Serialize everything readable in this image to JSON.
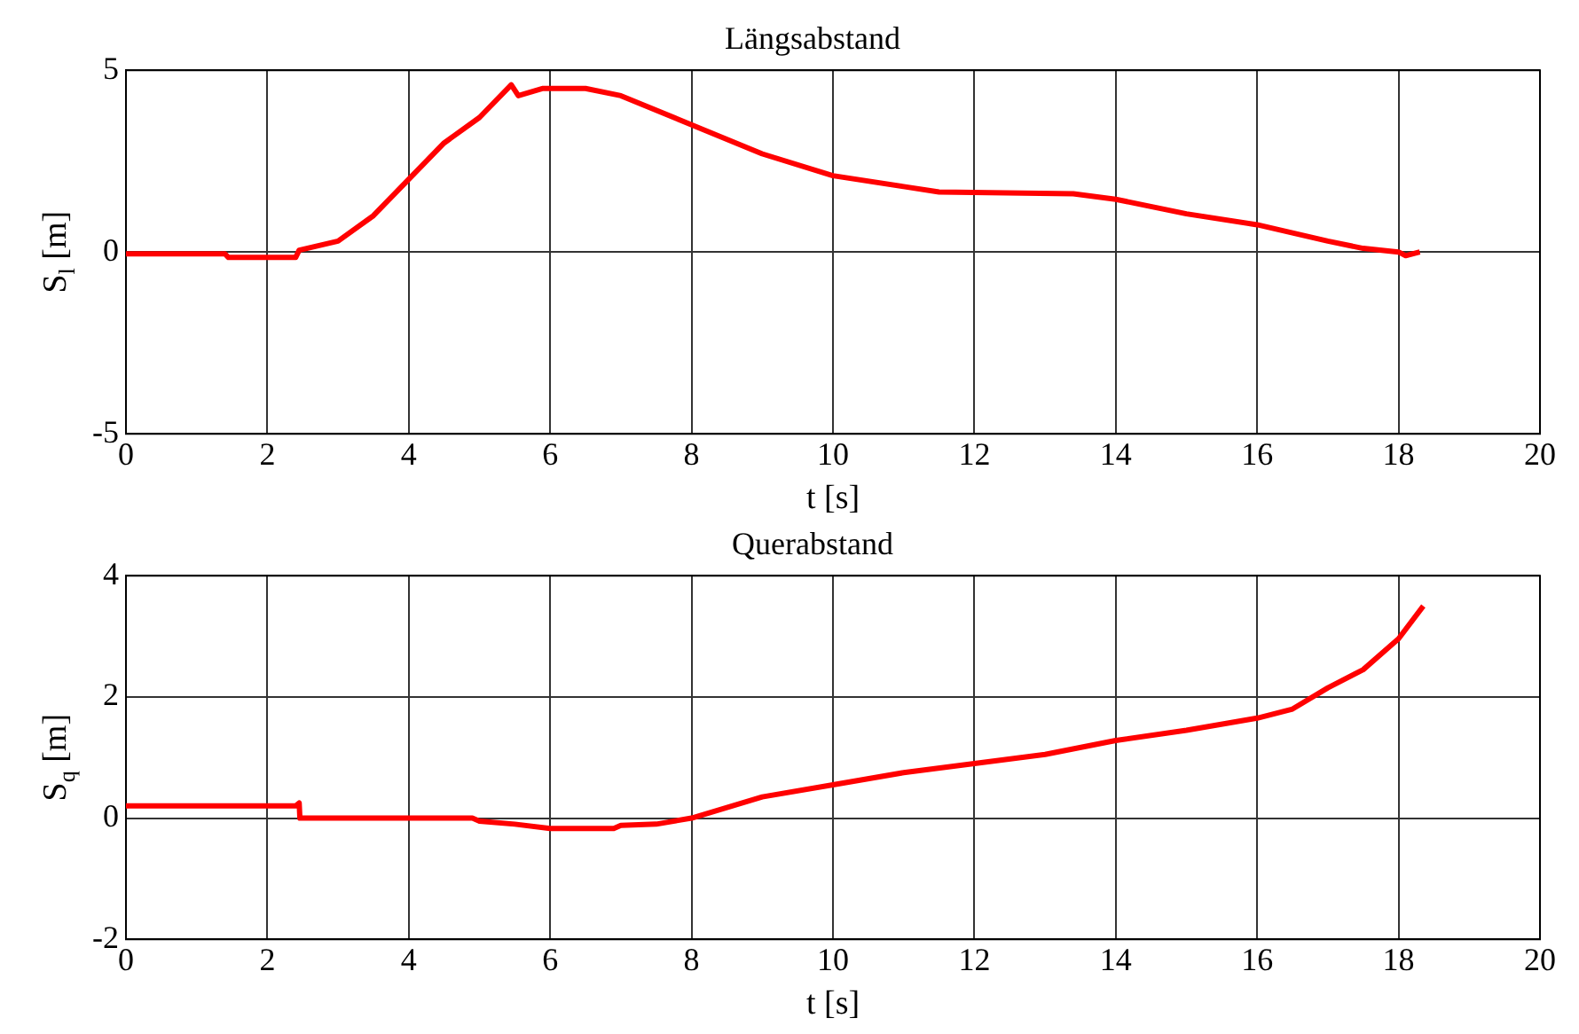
{
  "chart_data": [
    {
      "type": "line",
      "title": "Längsabstand",
      "xlabel": "t [s]",
      "ylabel": "S$_{l}$ [m]",
      "color": "#ff0000",
      "grid": true,
      "marker": "none",
      "xlim": [
        0,
        20
      ],
      "xticks": [
        0,
        2,
        4,
        6,
        8,
        10,
        12,
        14,
        16,
        18,
        20
      ],
      "ylim": [
        -5,
        5
      ],
      "yticks": [
        -5,
        0,
        5
      ],
      "x": [
        0,
        1.4,
        1.45,
        2.4,
        2.45,
        3,
        3.5,
        4,
        4.5,
        5,
        5.45,
        5.55,
        5.9,
        6.5,
        7,
        8,
        9,
        10,
        11,
        11.5,
        13.4,
        14,
        15,
        16,
        17,
        17.5,
        18,
        18.1,
        18.3
      ],
      "values": [
        -0.05,
        -0.05,
        -0.15,
        -0.15,
        0.05,
        0.3,
        1.0,
        2.0,
        3.0,
        3.7,
        4.6,
        4.3,
        4.5,
        4.5,
        4.3,
        3.5,
        2.7,
        2.1,
        1.8,
        1.65,
        1.6,
        1.45,
        1.05,
        0.75,
        0.3,
        0.1,
        0.0,
        -0.1,
        0.0
      ]
    },
    {
      "type": "line",
      "title": "Querabstand",
      "xlabel": "t [s]",
      "ylabel": "S$_{q}$ [m]",
      "color": "#ff0000",
      "grid": true,
      "marker": "none",
      "xlim": [
        0,
        20
      ],
      "xticks": [
        0,
        2,
        4,
        6,
        8,
        10,
        12,
        14,
        16,
        18,
        20
      ],
      "ylim": [
        -2,
        4
      ],
      "yticks": [
        -2,
        0,
        2,
        4
      ],
      "x": [
        0,
        2.4,
        2.45,
        2.46,
        4.9,
        5,
        5.5,
        6,
        6.9,
        7,
        7.5,
        8,
        9,
        10,
        11,
        12,
        13,
        14,
        15,
        16,
        16.5,
        17,
        17.5,
        18,
        18.35
      ],
      "values": [
        0.2,
        0.2,
        0.25,
        0,
        0,
        -0.05,
        -0.1,
        -0.17,
        -0.17,
        -0.12,
        -0.1,
        0,
        0.35,
        0.55,
        0.75,
        0.9,
        1.05,
        1.28,
        1.45,
        1.65,
        1.8,
        2.15,
        2.45,
        2.96,
        3.5
      ]
    }
  ]
}
